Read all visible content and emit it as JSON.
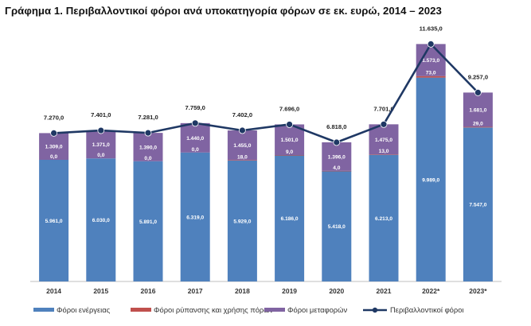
{
  "title": "Γράφημα 1. Περιβαλλοντικοί φόροι ανά υποκατηγορία φόρων σε εκ. ευρώ, 2014 – 2023",
  "chart_data": {
    "type": "bar",
    "stacked": true,
    "categories": [
      "2014",
      "2015",
      "2016",
      "2017",
      "2018",
      "2019",
      "2020",
      "2021",
      "2022*",
      "2023*"
    ],
    "series": [
      {
        "name": "Φόροι ενέργειας",
        "type": "bar",
        "color": "#4f81bd",
        "values": [
          5961.0,
          6030.0,
          5891.0,
          6319.0,
          5929.0,
          6186.0,
          5418.0,
          6213.0,
          9989.0,
          7547.0
        ],
        "labels": [
          "5.961,0",
          "6.030,0",
          "5.891,0",
          "6.319,0",
          "5.929,0",
          "6.186,0",
          "5.418,0",
          "6.213,0",
          "9.989,0",
          "7.547,0"
        ]
      },
      {
        "name": "Φόροι ρύπανσης και χρήσης πόρων",
        "type": "bar",
        "color": "#c0504d",
        "values": [
          0.0,
          0.0,
          0.0,
          0.0,
          18.0,
          9.0,
          4.0,
          13.0,
          73.0,
          29.0
        ],
        "labels": [
          "0,0",
          "0,0",
          "0,0",
          "0,0",
          "18,0",
          "9,0",
          "4,0",
          "13,0",
          "73,0",
          "29,0"
        ]
      },
      {
        "name": "Φόροι μεταφορών",
        "type": "bar",
        "color": "#8064a2",
        "values": [
          1309.0,
          1371.0,
          1390.0,
          1440.0,
          1455.0,
          1501.0,
          1396.0,
          1475.0,
          1573.0,
          1681.0
        ],
        "labels": [
          "1.309,0",
          "1.371,0",
          "1.390,0",
          "1.440,0",
          "1.455,0",
          "1.501,0",
          "1.396,0",
          "1.475,0",
          "1.573,0",
          "1.681,0"
        ]
      },
      {
        "name": "Περιβαλλοντικοί φόροι",
        "type": "line",
        "color": "#1f3864",
        "values": [
          7270.0,
          7401.0,
          7281.0,
          7759.0,
          7402.0,
          7696.0,
          6818.0,
          7701.0,
          11635.0,
          9257.0
        ],
        "labels": [
          "7.270,0",
          "7.401,0",
          "7.281,0",
          "7.759,0",
          "7.402,0",
          "7.696,0",
          "6.818,0",
          "7.701,0",
          "11.635,0",
          "9.257,0"
        ]
      }
    ],
    "xlabel": "",
    "ylabel": "",
    "ylim": [
      0,
      12000
    ],
    "grid": false,
    "legend": "bottom"
  }
}
